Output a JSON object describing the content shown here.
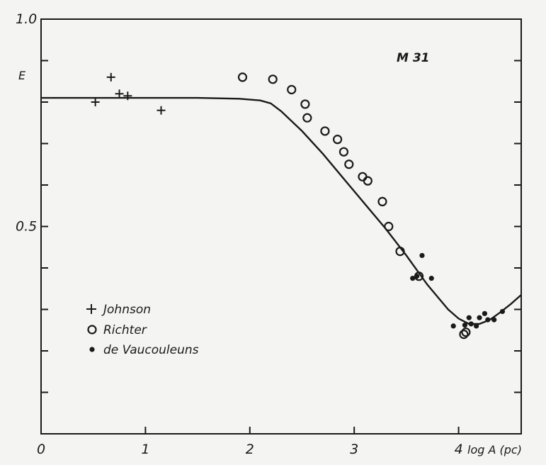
{
  "chart_data": {
    "type": "scatter",
    "title": "",
    "annotation": "M 31",
    "xlabel": "log A (pc)",
    "ylabel": "E",
    "xlim": [
      0,
      4.6
    ],
    "ylim": [
      0,
      1.0
    ],
    "x_ticks": [
      0,
      1,
      2,
      3,
      4
    ],
    "x_tick_labels": [
      "0",
      "1",
      "2",
      "3",
      "4"
    ],
    "y_ticks": [
      0,
      0.1,
      0.2,
      0.3,
      0.4,
      0.5,
      0.6,
      0.7,
      0.8,
      0.9,
      1.0
    ],
    "y_tick_labels": [
      "",
      "",
      "",
      "",
      "",
      "0.5",
      "",
      "",
      "",
      "",
      "1.0"
    ],
    "grid": false,
    "legend_position": "left",
    "series": [
      {
        "name": "Johnson",
        "marker": "cross",
        "points": [
          [
            0.52,
            0.8
          ],
          [
            0.67,
            0.86
          ],
          [
            0.75,
            0.82
          ],
          [
            0.83,
            0.815
          ],
          [
            1.15,
            0.78
          ]
        ]
      },
      {
        "name": "Richter",
        "marker": "open-circle",
        "points": [
          [
            1.93,
            0.86
          ],
          [
            2.22,
            0.855
          ],
          [
            2.4,
            0.83
          ],
          [
            2.53,
            0.795
          ],
          [
            2.55,
            0.762
          ],
          [
            2.72,
            0.73
          ],
          [
            2.84,
            0.71
          ],
          [
            2.9,
            0.68
          ],
          [
            2.95,
            0.65
          ],
          [
            3.08,
            0.62
          ],
          [
            3.13,
            0.61
          ],
          [
            3.27,
            0.56
          ],
          [
            3.33,
            0.5
          ],
          [
            3.44,
            0.44
          ],
          [
            3.62,
            0.38
          ],
          [
            4.05,
            0.24
          ],
          [
            4.07,
            0.245
          ]
        ]
      },
      {
        "name": "de Vaucouleuns",
        "marker": "filled-circle",
        "points": [
          [
            3.56,
            0.375
          ],
          [
            3.6,
            0.38
          ],
          [
            3.65,
            0.43
          ],
          [
            3.74,
            0.375
          ],
          [
            3.95,
            0.26
          ],
          [
            4.06,
            0.262
          ],
          [
            4.1,
            0.28
          ],
          [
            4.12,
            0.265
          ],
          [
            4.17,
            0.26
          ],
          [
            4.2,
            0.28
          ],
          [
            4.25,
            0.29
          ],
          [
            4.28,
            0.275
          ],
          [
            4.34,
            0.275
          ],
          [
            4.42,
            0.295
          ]
        ]
      },
      {
        "name": "",
        "type": "line",
        "points": [
          [
            0,
            0.81
          ],
          [
            1.5,
            0.81
          ],
          [
            1.9,
            0.808
          ],
          [
            2.1,
            0.804
          ],
          [
            2.2,
            0.797
          ],
          [
            2.3,
            0.778
          ],
          [
            2.5,
            0.73
          ],
          [
            2.7,
            0.675
          ],
          [
            2.9,
            0.615
          ],
          [
            3.1,
            0.555
          ],
          [
            3.3,
            0.495
          ],
          [
            3.5,
            0.43
          ],
          [
            3.7,
            0.36
          ],
          [
            3.9,
            0.3
          ],
          [
            4.0,
            0.278
          ],
          [
            4.1,
            0.265
          ],
          [
            4.2,
            0.265
          ],
          [
            4.3,
            0.275
          ],
          [
            4.4,
            0.293
          ],
          [
            4.5,
            0.313
          ],
          [
            4.6,
            0.335
          ]
        ]
      }
    ]
  }
}
